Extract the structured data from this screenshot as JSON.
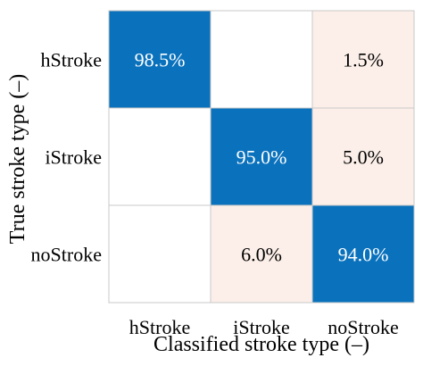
{
  "chart_data": {
    "type": "heatmap",
    "title": "",
    "xlabel": "Classified stroke type (–)",
    "ylabel": "True stroke type (–)",
    "x_categories": [
      "hStroke",
      "iStroke",
      "noStroke"
    ],
    "y_categories": [
      "hStroke",
      "iStroke",
      "noStroke"
    ],
    "values": [
      [
        98.5,
        0,
        1.5
      ],
      [
        0,
        95.0,
        5.0
      ],
      [
        0,
        6.0,
        94.0
      ]
    ],
    "cell_labels": [
      [
        "98.5%",
        "",
        "1.5%"
      ],
      [
        "",
        "95.0%",
        "5.0%"
      ],
      [
        "",
        "6.0%",
        "94.0%"
      ]
    ],
    "colors": {
      "high": "#0a72bd",
      "low_tint": "#fcefe9",
      "empty": "#ffffff",
      "grid": "#c8c8c8",
      "text_on_dark": "#ffffff",
      "text_on_light": "#000000"
    }
  }
}
